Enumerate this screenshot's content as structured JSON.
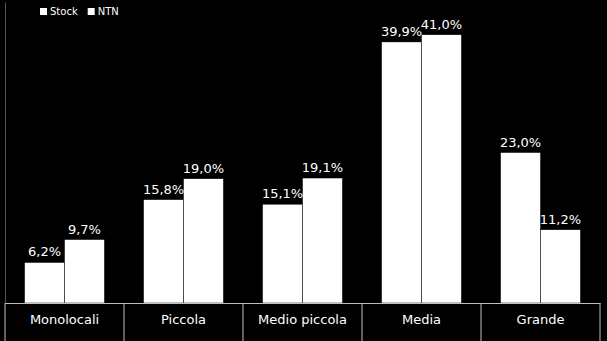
{
  "chart_data": {
    "type": "bar",
    "categories": [
      "Monolocali",
      "Piccola",
      "Medio piccola",
      "Media",
      "Grande"
    ],
    "series": [
      {
        "name": "Stock",
        "color": "#ffffff",
        "values": [
          6.2,
          15.8,
          15.1,
          39.9,
          23.0
        ],
        "value_labels": [
          "6,2%",
          "15,8%",
          "15,1%",
          "39,9%",
          "23,0%"
        ]
      },
      {
        "name": "NTN",
        "color": "#ffffff",
        "values": [
          9.7,
          19.0,
          19.1,
          41.0,
          11.2
        ],
        "value_labels": [
          "9,7%",
          "19,0%",
          "19,1%",
          "41,0%",
          "11,2%"
        ]
      }
    ],
    "ylim": [
      0,
      46
    ],
    "data_labels": true,
    "tick_labels": "x",
    "legend": "upper left"
  }
}
